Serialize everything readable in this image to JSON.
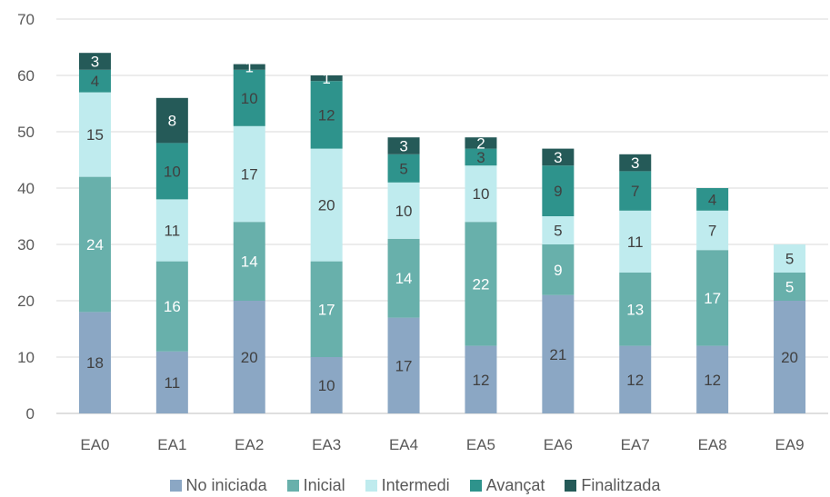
{
  "chart_data": {
    "type": "bar",
    "stacked": true,
    "categories": [
      "EA0",
      "EA1",
      "EA2",
      "EA3",
      "EA4",
      "EA5",
      "EA6",
      "EA7",
      "EA8",
      "EA9"
    ],
    "series": [
      {
        "name": "No iniciada",
        "color": "#8BA7C4",
        "label_color": "#404040",
        "values": [
          18,
          11,
          20,
          10,
          17,
          12,
          21,
          12,
          12,
          20
        ]
      },
      {
        "name": "Inicial",
        "color": "#68B0AB",
        "label_color": "#FFFFFF",
        "values": [
          24,
          16,
          14,
          17,
          14,
          22,
          9,
          13,
          17,
          5
        ]
      },
      {
        "name": "Intermedi",
        "color": "#BFEBEE",
        "label_color": "#404040",
        "values": [
          15,
          11,
          17,
          20,
          10,
          10,
          5,
          11,
          7,
          5
        ]
      },
      {
        "name": "Avançat",
        "color": "#2E938C",
        "label_color": "#404040",
        "values": [
          4,
          10,
          10,
          12,
          5,
          3,
          9,
          7,
          4,
          0
        ]
      },
      {
        "name": "Finalitzada",
        "color": "#255A58",
        "label_color": "#FFFFFF",
        "values": [
          3,
          8,
          1,
          1,
          3,
          2,
          3,
          3,
          0,
          0
        ]
      }
    ],
    "ylim": [
      0,
      70
    ],
    "yticks": [
      0,
      10,
      20,
      30,
      40,
      50,
      60,
      70
    ],
    "grid": true,
    "legend_position": "bottom"
  }
}
